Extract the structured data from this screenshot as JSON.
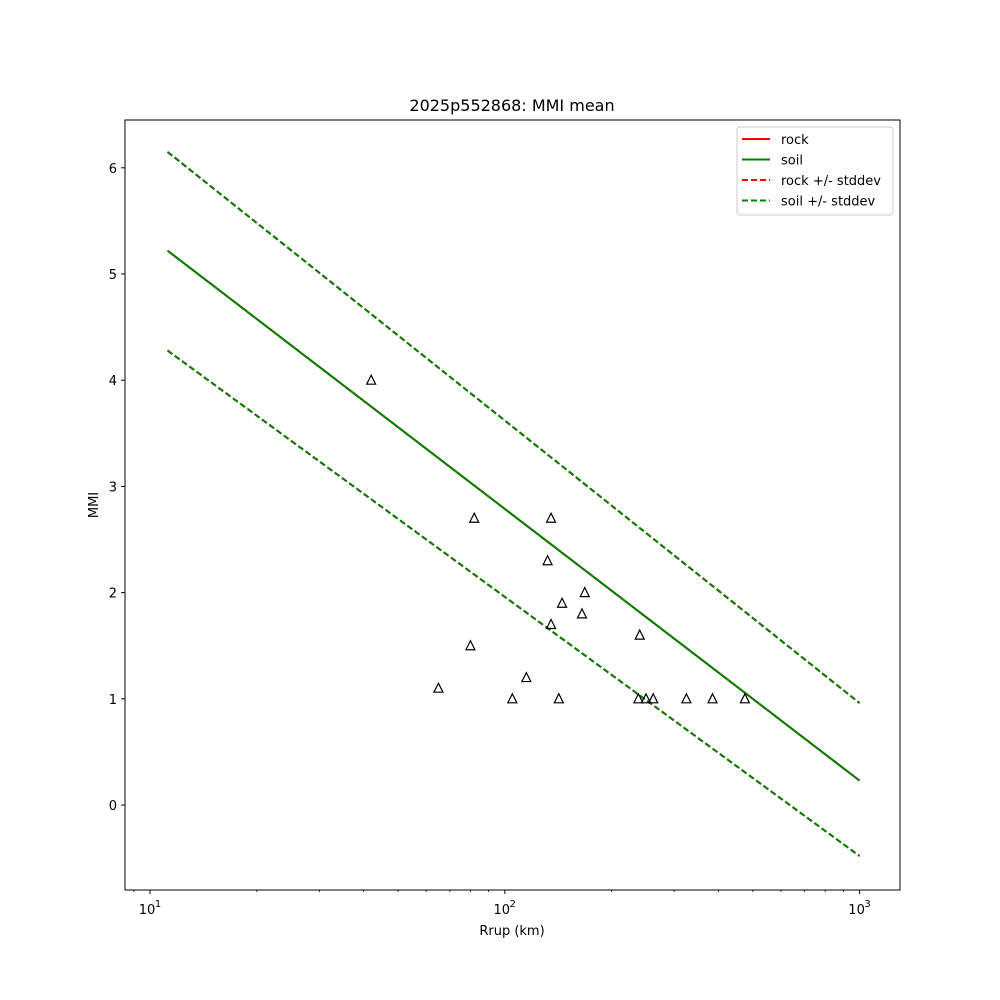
{
  "chart_data": {
    "type": "line",
    "title": "2025p552868: MMI mean",
    "xlabel": "Rrup (km)",
    "ylabel": "MMI",
    "xscale": "log",
    "xlim": [
      8.5,
      1300
    ],
    "ylim": [
      -0.8,
      6.45
    ],
    "xticks": [
      {
        "value": 10,
        "base": "10",
        "exp": "1"
      },
      {
        "value": 100,
        "base": "10",
        "exp": "2"
      },
      {
        "value": 1000,
        "base": "10",
        "exp": "3"
      }
    ],
    "yticks": [
      0,
      1,
      2,
      3,
      4,
      5,
      6
    ],
    "grid": false,
    "legend_position": "top-right",
    "series": [
      {
        "name": "rock",
        "style": "solid",
        "color": "#ff0000",
        "x": [
          11.2,
          1000
        ],
        "y": [
          5.22,
          0.23
        ]
      },
      {
        "name": "soil",
        "style": "solid",
        "color": "#008000",
        "x": [
          11.2,
          1000
        ],
        "y": [
          5.22,
          0.23
        ]
      },
      {
        "name": "rock +/- stddev",
        "style": "dashed",
        "color": "#ff0000",
        "x": [
          11.2,
          1000
        ],
        "y": [
          6.15,
          0.96
        ],
        "x2": [
          11.2,
          1000
        ],
        "y2": [
          4.28,
          -0.48
        ]
      },
      {
        "name": "soil +/- stddev",
        "style": "dashed",
        "color": "#008000",
        "x": [
          11.2,
          1000
        ],
        "y": [
          6.15,
          0.96
        ],
        "x2": [
          11.2,
          1000
        ],
        "y2": [
          4.28,
          -0.48
        ]
      }
    ],
    "points": {
      "marker": "triangle",
      "x": [
        42,
        65,
        80,
        82,
        105,
        115,
        132,
        135,
        135,
        142,
        145,
        165,
        168,
        238,
        240,
        250,
        262,
        325,
        385,
        475
      ],
      "y": [
        4.0,
        1.1,
        1.5,
        2.7,
        1.0,
        1.2,
        2.3,
        2.7,
        1.7,
        1.0,
        1.9,
        1.8,
        2.0,
        1.0,
        1.6,
        1.0,
        1.0,
        1.0,
        1.0,
        1.0
      ]
    }
  }
}
